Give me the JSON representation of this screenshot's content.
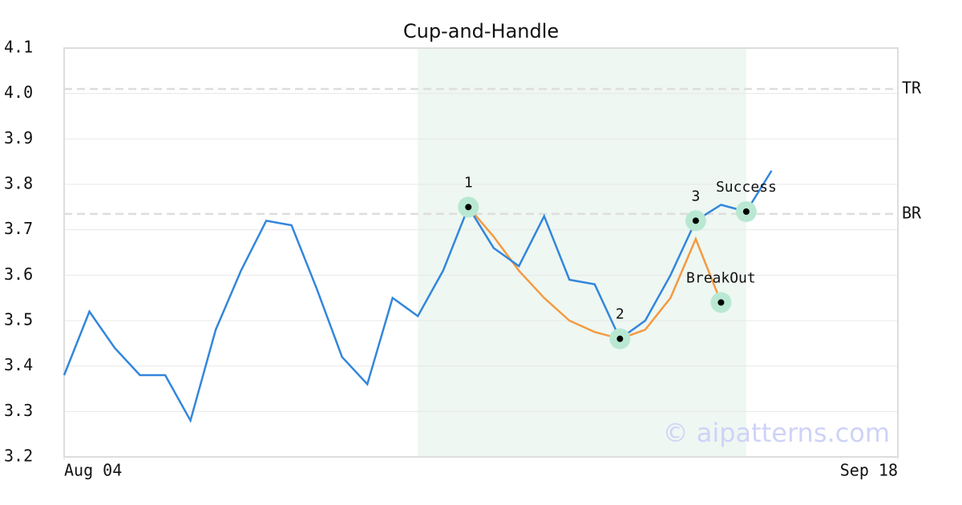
{
  "chart_data": {
    "type": "line",
    "title": "Cup-and-Handle",
    "xlim": [
      0,
      33
    ],
    "xticks": [
      {
        "value": 0,
        "label": "Aug 04"
      },
      {
        "value": 33,
        "label": "Sep 18"
      }
    ],
    "ylim": [
      3.2,
      4.1
    ],
    "yticks": [
      3.2,
      3.3,
      3.4,
      3.5,
      3.6,
      3.7,
      3.8,
      3.9,
      {
        "value": 4.0,
        "label": "4.0"
      },
      4.1
    ],
    "grid": true,
    "series": [
      {
        "color": "#3386dc",
        "x": [
          0,
          1,
          2,
          3,
          4,
          5,
          6,
          7,
          8,
          9,
          10,
          11,
          12,
          13,
          14,
          15,
          16,
          17,
          18,
          19,
          20,
          21,
          22,
          23,
          24,
          25,
          26,
          27,
          28
        ],
        "values": [
          3.38,
          3.52,
          3.44,
          3.38,
          3.38,
          3.28,
          3.48,
          3.61,
          3.72,
          3.71,
          3.57,
          3.42,
          3.36,
          3.55,
          3.51,
          3.61,
          3.75,
          3.66,
          3.62,
          3.73,
          3.59,
          3.58,
          3.46,
          3.5,
          3.6,
          3.72,
          3.755,
          3.74,
          3.83
        ]
      },
      {
        "color": "#f59a40",
        "x": [
          16,
          17,
          18,
          19,
          20,
          21,
          22,
          23,
          24,
          25,
          26
        ],
        "values": [
          3.75,
          3.685,
          3.61,
          3.55,
          3.5,
          3.475,
          3.46,
          3.48,
          3.55,
          3.68,
          3.54
        ]
      }
    ],
    "shaded_region": {
      "x": [
        14,
        27
      ],
      "color": "#eef7f2"
    },
    "hlines": [
      {
        "label": "TR",
        "value": 4.01
      },
      {
        "label": "BR",
        "value": 3.735
      }
    ],
    "points": [
      {
        "label": "1",
        "x": 16,
        "y": 3.75
      },
      {
        "label": "2",
        "x": 22,
        "y": 3.46
      },
      {
        "label": "3",
        "x": 25,
        "y": 3.72
      },
      {
        "label": "BreakOut",
        "x": 26,
        "y": 3.54
      },
      {
        "label": "Success",
        "x": 27,
        "y": 3.74
      }
    ],
    "watermark": "© aipatterns.com"
  }
}
